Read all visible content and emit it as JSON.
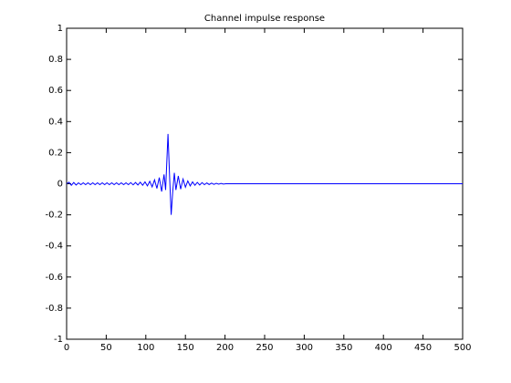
{
  "chart_data": {
    "type": "line",
    "title": "Channel impulse response",
    "x": [
      0,
      3,
      6,
      9,
      12,
      15,
      18,
      21,
      24,
      27,
      30,
      33,
      36,
      39,
      42,
      45,
      48,
      51,
      54,
      57,
      60,
      63,
      66,
      69,
      72,
      75,
      78,
      81,
      84,
      87,
      90,
      93,
      96,
      99,
      102,
      105,
      108,
      111,
      114,
      117,
      120,
      123,
      125,
      128,
      130,
      132,
      134,
      136,
      138,
      141,
      144,
      147,
      150,
      153,
      156,
      159,
      162,
      165,
      168,
      171,
      174,
      177,
      180,
      183,
      186,
      189,
      192,
      195,
      198,
      201,
      500
    ],
    "values": [
      0,
      0.01,
      -0.01,
      0.008,
      -0.008,
      0.006,
      -0.006,
      0.006,
      -0.006,
      0.006,
      -0.006,
      0.006,
      -0.006,
      0.006,
      -0.006,
      0.006,
      -0.006,
      0.006,
      -0.006,
      0.006,
      -0.006,
      0.006,
      -0.006,
      0.006,
      -0.006,
      0.006,
      -0.006,
      0.007,
      -0.007,
      0.008,
      -0.008,
      0.01,
      -0.01,
      0.012,
      -0.014,
      0.016,
      -0.02,
      0.025,
      -0.03,
      0.04,
      -0.05,
      0.06,
      -0.04,
      0.32,
      0.05,
      -0.2,
      -0.05,
      0.07,
      -0.04,
      0.05,
      -0.035,
      0.03,
      -0.022,
      0.018,
      -0.014,
      0.012,
      -0.01,
      0.009,
      -0.008,
      0.007,
      -0.006,
      0.005,
      -0.005,
      0.004,
      -0.004,
      0.003,
      -0.003,
      0.002,
      -0.002,
      0,
      0
    ],
    "color": "#0000ff",
    "xlim": [
      0,
      500
    ],
    "xticks": [
      0,
      50,
      100,
      150,
      200,
      250,
      300,
      350,
      400,
      450,
      500
    ],
    "ylim": [
      -1,
      1
    ],
    "yticks": [
      -1,
      -0.8,
      -0.6,
      -0.4,
      -0.2,
      0,
      0.2,
      0.4,
      0.6,
      0.8,
      1
    ]
  }
}
